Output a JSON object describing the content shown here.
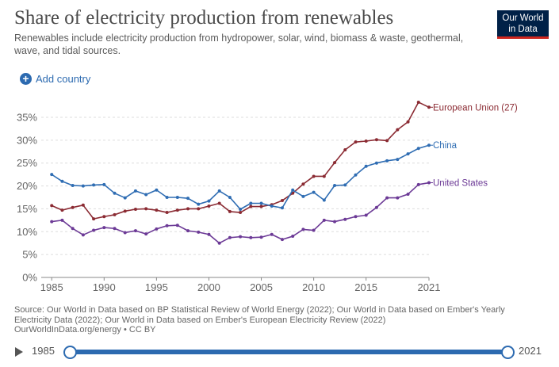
{
  "header": {
    "title": "Share of electricity production from renewables",
    "subtitle": "Renewables include electricity production from hydropower, solar, wind, biomass & waste, geothermal, wave, and tidal sources.",
    "logo_line1": "Our World",
    "logo_line2": "in Data",
    "add_country_label": "Add country"
  },
  "source": {
    "line1": "Source: Our World in Data based on BP Statistical Review of World Energy (2022); Our World in Data based on Ember's Yearly",
    "line2": "Electricity Data (2022); Our World in Data based on Ember's European Electricity Review (2022)",
    "line3": "OurWorldInData.org/energy • CC BY"
  },
  "timeline": {
    "start_label": "1985",
    "end_label": "2021",
    "start_value": 1985,
    "end_value": 2021
  },
  "colors": {
    "eu": "#8b2b33",
    "china": "#2f6db3",
    "us": "#6c3a96",
    "grid": "#dddddd",
    "accent": "#2c6ab0"
  },
  "chart_data": {
    "type": "line",
    "title": "Share of electricity production from renewables",
    "xlabel": "",
    "ylabel": "",
    "xlim": [
      1984,
      2021
    ],
    "ylim": [
      0,
      35
    ],
    "yticks": [
      0,
      5,
      10,
      15,
      20,
      25,
      30,
      35
    ],
    "ytick_labels": [
      "0%",
      "5%",
      "10%",
      "15%",
      "20%",
      "25%",
      "30%",
      "35%"
    ],
    "xticks": [
      1985,
      1990,
      1995,
      2000,
      2005,
      2010,
      2015,
      2021
    ],
    "xtick_labels": [
      "1985",
      "1990",
      "1995",
      "2000",
      "2005",
      "2010",
      "2015",
      "2021"
    ],
    "grid": true,
    "x": [
      1985,
      1986,
      1987,
      1988,
      1989,
      1990,
      1991,
      1992,
      1993,
      1994,
      1995,
      1996,
      1997,
      1998,
      1999,
      2000,
      2001,
      2002,
      2003,
      2004,
      2005,
      2006,
      2007,
      2008,
      2009,
      2010,
      2011,
      2012,
      2013,
      2014,
      2015,
      2016,
      2017,
      2018,
      2019,
      2020,
      2021
    ],
    "series": [
      {
        "name": "European Union (27)",
        "key": "eu",
        "label": "European Union (27)",
        "values": [
          15.7,
          14.7,
          15.3,
          15.8,
          12.8,
          13.3,
          13.7,
          14.5,
          14.9,
          15.0,
          14.7,
          14.2,
          14.7,
          15.0,
          15.0,
          15.6,
          16.2,
          14.4,
          14.2,
          15.5,
          15.5,
          15.9,
          16.8,
          18.4,
          20.4,
          22.1,
          22.1,
          25.1,
          27.9,
          29.6,
          29.8,
          30.1,
          29.9,
          32.3,
          34.0,
          38.3,
          37.2
        ]
      },
      {
        "name": "China",
        "key": "china",
        "label": "China",
        "values": [
          22.5,
          21.0,
          20.1,
          20.0,
          20.2,
          20.3,
          18.4,
          17.4,
          18.9,
          18.1,
          19.1,
          17.5,
          17.5,
          17.3,
          16.0,
          16.7,
          18.9,
          17.5,
          14.9,
          16.2,
          16.2,
          15.6,
          15.2,
          19.1,
          17.7,
          18.6,
          16.9,
          20.1,
          20.2,
          22.4,
          24.3,
          25.0,
          25.5,
          25.8,
          27.0,
          28.2,
          28.9
        ]
      },
      {
        "name": "United States",
        "key": "us",
        "label": "United States",
        "values": [
          12.2,
          12.5,
          10.7,
          9.3,
          10.3,
          10.9,
          10.7,
          9.8,
          10.2,
          9.5,
          10.6,
          11.3,
          11.4,
          10.2,
          9.9,
          9.4,
          7.5,
          8.7,
          8.9,
          8.7,
          8.8,
          9.4,
          8.3,
          9.0,
          10.5,
          10.3,
          12.5,
          12.2,
          12.7,
          13.3,
          13.6,
          15.3,
          17.4,
          17.4,
          18.2,
          20.3,
          20.7
        ]
      }
    ]
  }
}
